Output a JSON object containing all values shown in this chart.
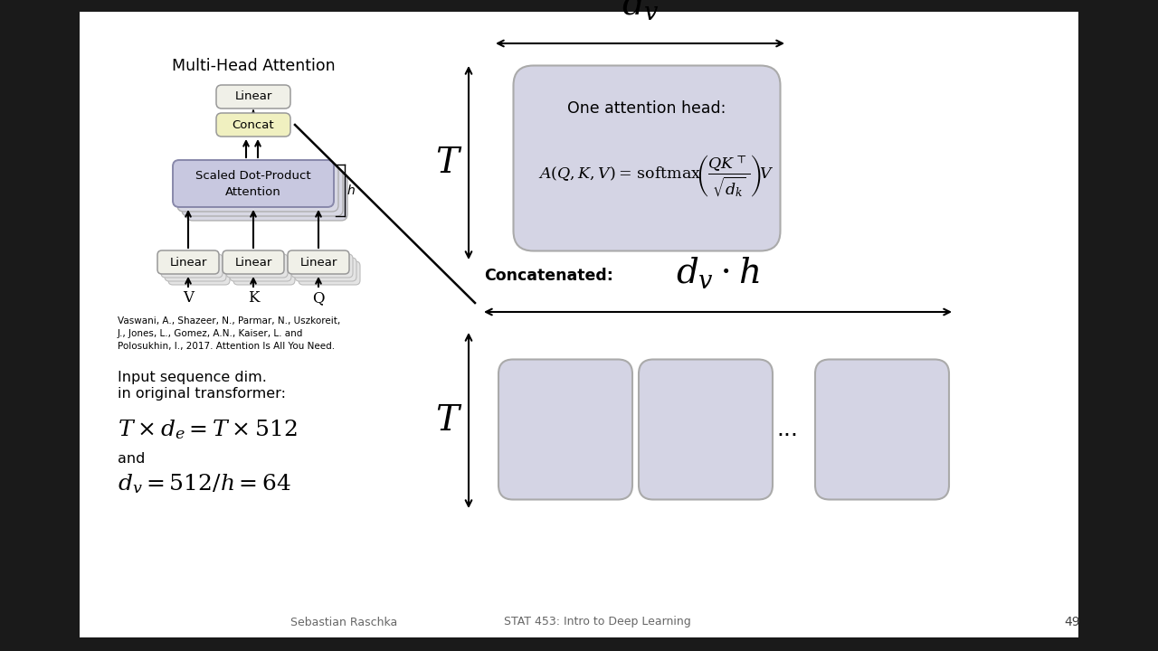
{
  "slide_bg": "#1a1a1a",
  "box_linear_color": "#f0f0e8",
  "box_concat_color": "#f0f0c0",
  "box_attention_color": "#c8c8e0",
  "box_shadow_color": "#d8d8e0",
  "box_rect_color": "#d0d0e0",
  "footer_text_left": "Sebastian Raschka",
  "footer_text_center": "STAT 453: Intro to Deep Learning",
  "footer_page": "49",
  "citation": "Vaswani, A., Shazeer, N., Parmar, N., Uszkoreit,\nJ., Jones, L., Gomez, A.N., Kaiser, L. and\nPolosukhin, I., 2017. Attention Is All You Need."
}
